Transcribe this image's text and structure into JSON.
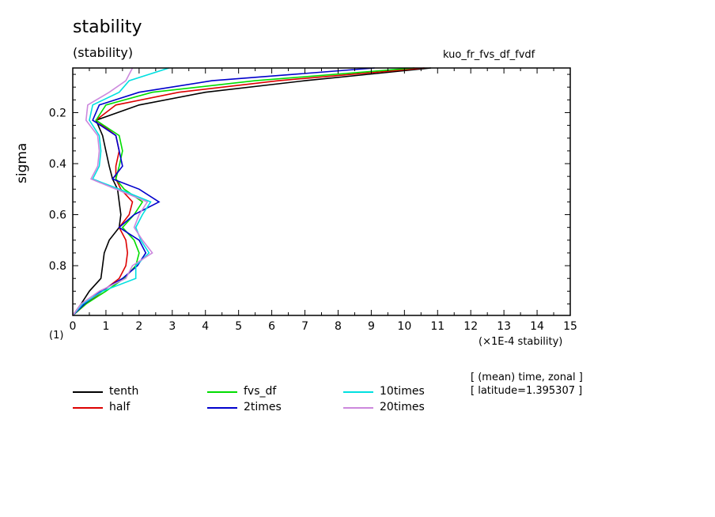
{
  "header": {
    "title": "stability",
    "subtitle": "(stability)",
    "run_label": "kuo_fr_fvs_df_fvdf"
  },
  "axis_text": {
    "ylabel": "sigma",
    "unit_label": "(×1E-4 stability)",
    "corner_label": "(1)"
  },
  "notes": {
    "line1": "[ (mean) time, zonal ]",
    "line2": "[ latitude=1.395307 ]"
  },
  "chart_data": {
    "type": "line",
    "title": "stability",
    "subtitle": "(stability)",
    "xlabel": "(×1E-4 stability)",
    "ylabel": "sigma",
    "xlim": [
      0,
      15
    ],
    "ylim": [
      0.995,
      0.025
    ],
    "x_ticks": [
      0,
      1,
      2,
      3,
      4,
      5,
      6,
      7,
      8,
      9,
      10,
      11,
      12,
      13,
      14,
      15
    ],
    "y_ticks": [
      0.2,
      0.4,
      0.6,
      0.8
    ],
    "y_values": [
      0.025,
      0.075,
      0.12,
      0.17,
      0.23,
      0.29,
      0.35,
      0.41,
      0.46,
      0.5,
      0.55,
      0.6,
      0.65,
      0.7,
      0.75,
      0.8,
      0.85,
      0.9,
      0.95,
      0.995
    ],
    "legend_position": "bottom",
    "series": [
      {
        "name": "tenth",
        "color": "#000000",
        "x": [
          10.8,
          7.0,
          4.0,
          2.0,
          0.7,
          0.9,
          1.0,
          1.1,
          1.2,
          1.35,
          1.4,
          1.45,
          1.4,
          1.1,
          0.95,
          0.9,
          0.85,
          0.5,
          0.25,
          0.0
        ]
      },
      {
        "name": "half",
        "color": "#dd0000",
        "x": [
          10.6,
          6.2,
          3.2,
          1.3,
          0.7,
          1.3,
          1.4,
          1.3,
          1.3,
          1.45,
          1.8,
          1.7,
          1.4,
          1.6,
          1.65,
          1.6,
          1.4,
          0.9,
          0.4,
          0.0
        ]
      },
      {
        "name": "fvs_df",
        "color": "#00dd00",
        "x": [
          10.3,
          5.5,
          2.4,
          1.0,
          0.7,
          1.4,
          1.5,
          1.4,
          1.3,
          1.55,
          2.1,
          1.85,
          1.5,
          1.85,
          2.0,
          1.9,
          1.55,
          1.0,
          0.4,
          0.0
        ]
      },
      {
        "name": "2times",
        "color": "#0000cc",
        "x": [
          9.1,
          4.2,
          2.0,
          0.8,
          0.6,
          1.3,
          1.4,
          1.5,
          1.2,
          2.0,
          2.6,
          1.85,
          1.4,
          2.0,
          2.2,
          1.95,
          1.5,
          0.85,
          0.35,
          0.0
        ]
      },
      {
        "name": "10times",
        "color": "#00e0e0",
        "x": [
          2.9,
          1.7,
          1.4,
          0.6,
          0.5,
          0.8,
          0.85,
          0.8,
          0.6,
          1.4,
          2.35,
          2.1,
          1.9,
          2.05,
          2.3,
          1.9,
          1.9,
          0.9,
          0.3,
          0.0
        ]
      },
      {
        "name": "20times",
        "color": "#cc88dd",
        "x": [
          1.8,
          1.6,
          1.1,
          0.45,
          0.4,
          0.75,
          0.8,
          0.75,
          0.55,
          1.3,
          2.25,
          2.0,
          1.85,
          2.1,
          2.4,
          1.8,
          1.6,
          0.8,
          0.25,
          0.0
        ]
      }
    ]
  }
}
